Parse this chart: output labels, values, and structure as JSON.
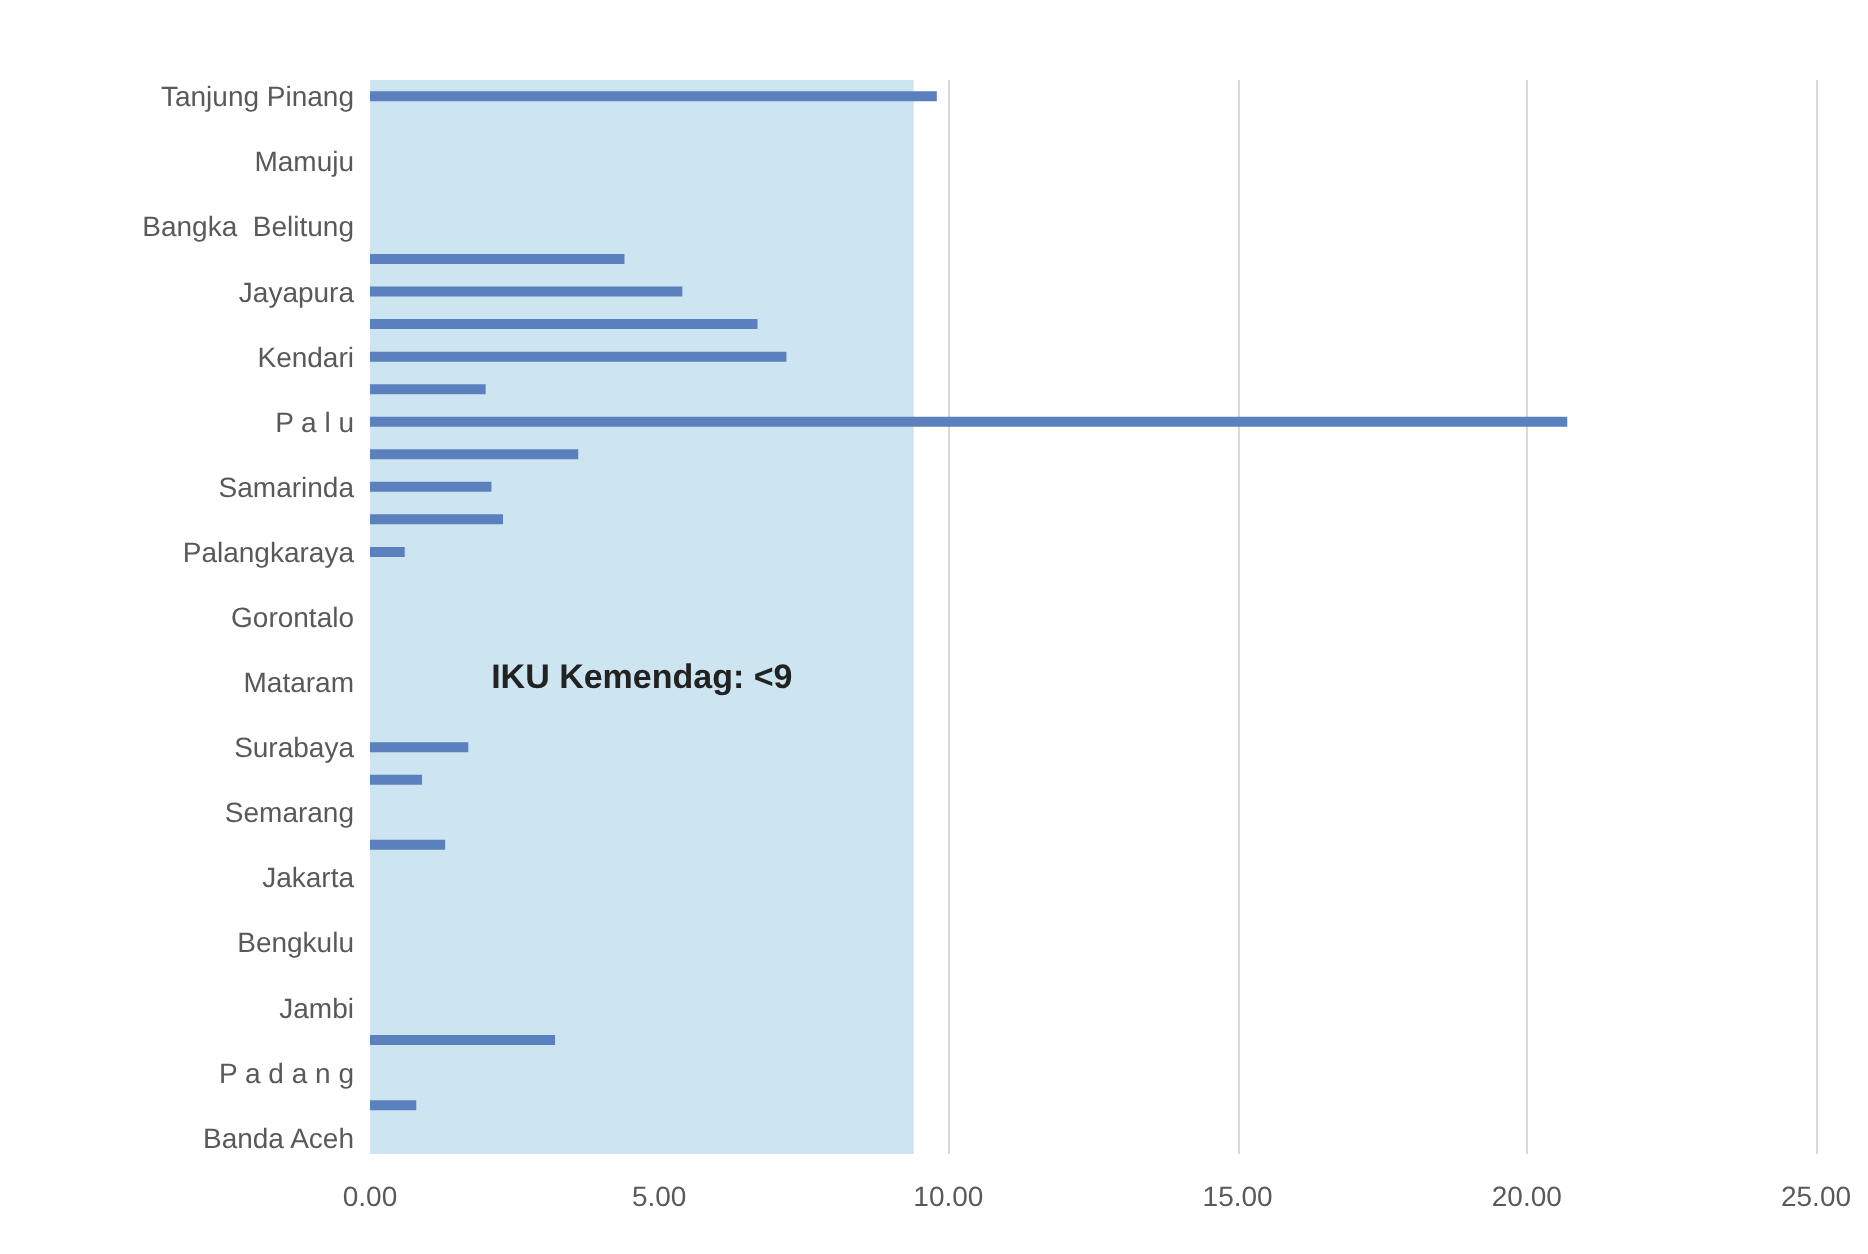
{
  "chart_data": {
    "type": "bar",
    "orientation": "horizontal",
    "categories": [
      "Tanjung Pinang",
      null,
      "Mamuju",
      null,
      "Bangka  Belitung",
      null,
      "Jayapura",
      null,
      "Kendari",
      null,
      "P a l u",
      null,
      "Samarinda",
      null,
      "Palangkaraya",
      null,
      "Gorontalo",
      null,
      "Mataram",
      null,
      "Surabaya",
      null,
      "Semarang",
      null,
      "Jakarta",
      null,
      "Bengkulu",
      null,
      "Jambi",
      null,
      "P a d a n g",
      null,
      "Banda Aceh"
    ],
    "values": [
      9.8,
      null,
      null,
      null,
      null,
      4.4,
      5.4,
      6.7,
      7.2,
      2.0,
      20.7,
      3.6,
      2.1,
      2.3,
      0.6,
      null,
      null,
      null,
      null,
      null,
      1.7,
      0.9,
      null,
      1.3,
      null,
      null,
      null,
      null,
      null,
      3.2,
      null,
      0.8,
      null
    ],
    "color": "#5a80bd",
    "xlim": [
      0,
      25
    ],
    "xticks": [
      {
        "value": 0,
        "label": "0.00"
      },
      {
        "value": 5,
        "label": "5.00"
      },
      {
        "value": 10,
        "label": "10.00"
      },
      {
        "value": 15,
        "label": "15.00"
      },
      {
        "value": 20,
        "label": "20.00"
      },
      {
        "value": 25,
        "label": "25.00"
      }
    ],
    "grid": "x",
    "bands": [
      {
        "axis": "x",
        "from": 0,
        "to": 9.4,
        "label": "IKU Kemendag: <9",
        "color": "#cde5f0"
      }
    ]
  }
}
